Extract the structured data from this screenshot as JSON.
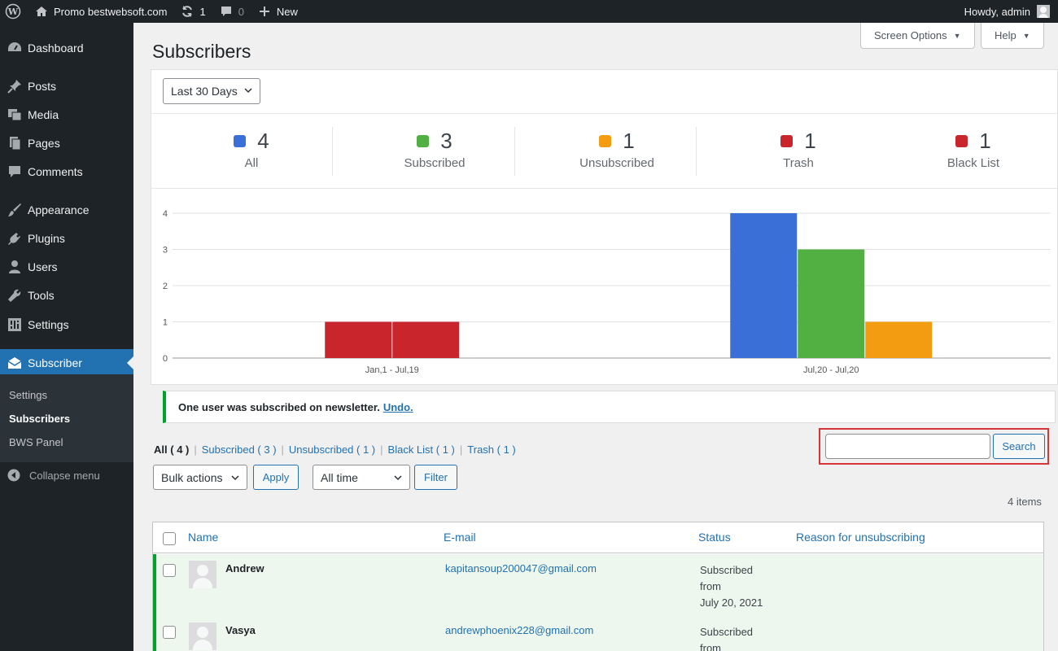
{
  "adminbar": {
    "site_name": "Promo bestwebsoft.com",
    "updates_count": "1",
    "comments_count": "0",
    "new_label": "New",
    "howdy": "Howdy, admin"
  },
  "sidebar": {
    "items": [
      {
        "label": "Dashboard",
        "icon": "dashboard-icon"
      },
      {
        "label": "Posts",
        "icon": "pin-icon"
      },
      {
        "label": "Media",
        "icon": "media-icon"
      },
      {
        "label": "Pages",
        "icon": "pages-icon"
      },
      {
        "label": "Comments",
        "icon": "comment-icon"
      },
      {
        "label": "Appearance",
        "icon": "brush-icon"
      },
      {
        "label": "Plugins",
        "icon": "plug-icon"
      },
      {
        "label": "Users",
        "icon": "user-icon"
      },
      {
        "label": "Tools",
        "icon": "wrench-icon"
      },
      {
        "label": "Settings",
        "icon": "settings-icon"
      },
      {
        "label": "Subscriber",
        "icon": "envelope-icon"
      }
    ],
    "submenu": [
      "Settings",
      "Subscribers",
      "BWS Panel"
    ],
    "collapse": "Collapse menu"
  },
  "header": {
    "title": "Subscribers",
    "screen_options": "Screen Options",
    "help": "Help"
  },
  "stats": {
    "range": "Last 30 Days",
    "items": [
      {
        "count": "4",
        "label": "All",
        "color": "#3a6fd8"
      },
      {
        "count": "3",
        "label": "Subscribed",
        "color": "#52b043"
      },
      {
        "count": "1",
        "label": "Unsubscribed",
        "color": "#f39c12"
      },
      {
        "count": "1",
        "label": "Trash",
        "color": "#c9252c"
      },
      {
        "count": "1",
        "label": "Black List",
        "color": "#c9252c"
      }
    ]
  },
  "chart_data": {
    "type": "bar",
    "categories": [
      "Jan,1 - Jul,19",
      "Jul,20 - Jul,20"
    ],
    "series": [
      {
        "values": [
          0,
          4
        ],
        "color": "#3a6fd8"
      },
      {
        "values": [
          0,
          3
        ],
        "color": "#52b043"
      },
      {
        "values": [
          0,
          1
        ],
        "color": "#f39c12"
      },
      {
        "values": [
          1,
          0
        ],
        "color": "#c9252c"
      },
      {
        "values": [
          1,
          0
        ],
        "color": "#c9252c"
      }
    ],
    "ylim": [
      0,
      4
    ],
    "yticks": [
      "0",
      "1",
      "2",
      "3",
      "4"
    ],
    "grid": true
  },
  "notice": {
    "text": "One user was subscribed on newsletter.",
    "undo": "Undo."
  },
  "filters": {
    "all": "All",
    "all_count": "( 4 )",
    "links": [
      "Subscribed ( 3 )",
      "Unsubscribed ( 1 )",
      "Black List ( 1 )",
      "Trash ( 1 )"
    ]
  },
  "search": {
    "button": "Search",
    "value": ""
  },
  "bulk": {
    "actions": "Bulk actions",
    "apply": "Apply",
    "time": "All time",
    "filter": "Filter",
    "items_count": "4 items"
  },
  "table": {
    "columns": [
      "Name",
      "E-mail",
      "Status",
      "Reason for unsubscribing"
    ],
    "rows": [
      {
        "name": "Andrew",
        "email": "kapitansoup200047@gmail.com",
        "status1": "Subscribed",
        "status2": "from",
        "status3": "July 20, 2021"
      },
      {
        "name": "Vasya",
        "email": "andrewphoenix228@gmail.com",
        "status1": "Subscribed",
        "status2": "from",
        "status3": ""
      }
    ]
  }
}
